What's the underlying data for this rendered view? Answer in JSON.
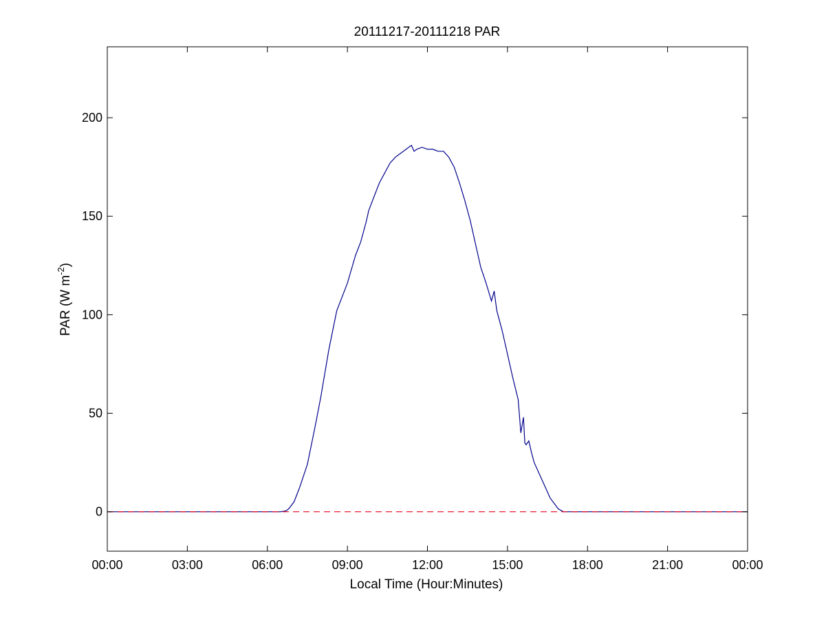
{
  "chart_data": {
    "type": "line",
    "title": "20111217-20111218 PAR",
    "xlabel": "Local Time (Hour:Minutes)",
    "ylabel_main": "PAR (W m",
    "ylabel_sup": "-2",
    "ylabel_close": ")",
    "xlim": [
      0,
      24
    ],
    "ylim": [
      -20,
      236
    ],
    "x_ticks": [
      {
        "value": 0,
        "label": "00:00"
      },
      {
        "value": 3,
        "label": "03:00"
      },
      {
        "value": 6,
        "label": "06:00"
      },
      {
        "value": 9,
        "label": "09:00"
      },
      {
        "value": 12,
        "label": "12:00"
      },
      {
        "value": 15,
        "label": "15:00"
      },
      {
        "value": 18,
        "label": "18:00"
      },
      {
        "value": 21,
        "label": "21:00"
      },
      {
        "value": 24,
        "label": "00:00"
      }
    ],
    "y_ticks": [
      {
        "value": 0,
        "label": "0"
      },
      {
        "value": 50,
        "label": "50"
      },
      {
        "value": 100,
        "label": "100"
      },
      {
        "value": 150,
        "label": "150"
      },
      {
        "value": 200,
        "label": "200"
      }
    ],
    "grid": false,
    "series": [
      {
        "color": "#00008b",
        "style": "solid",
        "x": [
          0,
          6.5,
          6.7,
          6.8,
          7.0,
          7.2,
          7.5,
          7.8,
          8.0,
          8.3,
          8.6,
          9.0,
          9.3,
          9.5,
          9.7,
          9.8,
          10.0,
          10.2,
          10.4,
          10.6,
          10.8,
          11.0,
          11.2,
          11.4,
          11.5,
          11.6,
          11.8,
          12.0,
          12.2,
          12.4,
          12.6,
          12.8,
          13.0,
          13.2,
          13.4,
          13.6,
          13.8,
          14.0,
          14.2,
          14.4,
          14.5,
          14.6,
          14.8,
          15.0,
          15.2,
          15.4,
          15.5,
          15.6,
          15.65,
          15.7,
          15.8,
          15.9,
          16.0,
          16.3,
          16.6,
          16.9,
          17.1,
          17.2,
          24
        ],
        "y": [
          0,
          0,
          0.5,
          1.5,
          5,
          12,
          24,
          44,
          58,
          82,
          102,
          116,
          130,
          137,
          147,
          153,
          160,
          167,
          172,
          177,
          180,
          182,
          184,
          186,
          183,
          184,
          185,
          184,
          184,
          183,
          183,
          180,
          175,
          167,
          158,
          148,
          136,
          124,
          116,
          107,
          112,
          102,
          92,
          80,
          68,
          57,
          40,
          48,
          35,
          34,
          36,
          30,
          25,
          16,
          7,
          1.5,
          0,
          0,
          0
        ]
      },
      {
        "color": "#e8001c",
        "style": "dashed",
        "x": [
          0,
          24
        ],
        "y": [
          0,
          0
        ]
      }
    ]
  }
}
